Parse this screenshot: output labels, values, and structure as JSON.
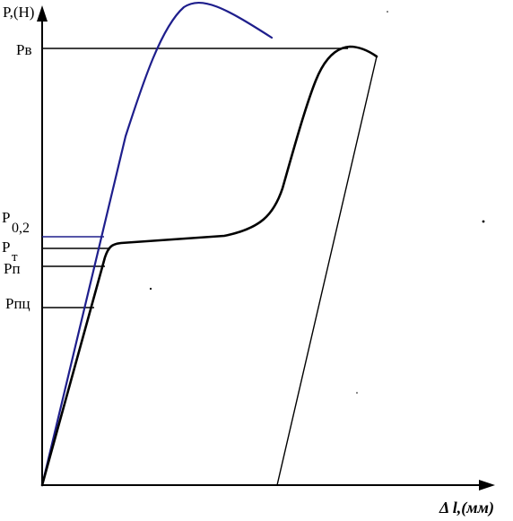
{
  "axes": {
    "y_label": "P,(H)",
    "x_label": "Δ l,(мм)"
  },
  "levels": [
    {
      "id": "pv",
      "label": "Рв"
    },
    {
      "id": "p02",
      "label": "P0,2",
      "main": "P",
      "sub": "0,2"
    },
    {
      "id": "pt",
      "label": "Рт",
      "main": "P",
      "sub": "т"
    },
    {
      "id": "pp",
      "label": "Рп"
    },
    {
      "id": "ppc",
      "label": "Рпц"
    }
  ],
  "curves": {
    "black": {
      "name": "black-tension-curve",
      "color": "#000000"
    },
    "blue": {
      "name": "blue-tension-curve",
      "color": "#1e1e8c"
    }
  }
}
